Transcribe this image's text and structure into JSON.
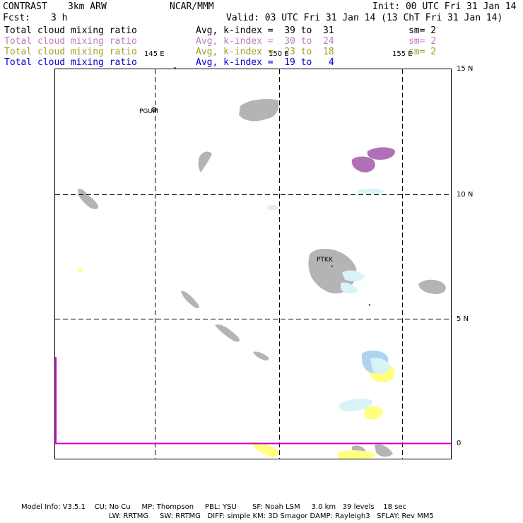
{
  "header": {
    "product": "CONTRAST",
    "model": "3km ARW",
    "center": "NCAR/MMM",
    "init": "Init: 00 UTC Fri 31 Jan 14",
    "fcst_label": "Fcst:",
    "fcst_value": "3 h",
    "valid": "Valid: 03 UTC Fri 31 Jan 14 (13 ChT Fri 31 Jan 14)"
  },
  "legend": [
    {
      "name": "Total cloud mixing ratio",
      "stat": "Avg, k-index =  39 to  31",
      "sm": "sm= 2",
      "color": "#000000"
    },
    {
      "name": "Total cloud mixing ratio",
      "stat": "Avg, k-index =  30 to  24",
      "sm": "sm= 2",
      "color": "#c07cc0"
    },
    {
      "name": "Total cloud mixing ratio",
      "stat": "Avg, k-index =  23 to  18",
      "sm": "sm= 2",
      "color": "#a0a020"
    },
    {
      "name": "Total cloud mixing ratio",
      "stat": "Avg, k-index =  19 to   4",
      "sm": "",
      "color": "#0000cc"
    }
  ],
  "map": {
    "lon_labels": [
      "145 E",
      "150 E",
      "155 E"
    ],
    "lat_labels": [
      "15 N",
      "10 N",
      "5 N",
      "0"
    ],
    "stations": [
      "PGUM",
      "PTKK"
    ],
    "colors": {
      "layer1_gray": "#b4b4b4",
      "layer2_purple": "#b070b8",
      "layer3_yellow": "#ffff80",
      "layer4_lightblue": "#d8f4f8",
      "layer4_blue": "#b0d4f0",
      "equator_line": "#d000d0"
    }
  },
  "footer": {
    "line1": "Model Info: V3.5.1    CU: No Cu     MP: Thompson     PBL: YSU       SF: Noah LSM     3.0 km   39 levels    18 sec",
    "line2": "LW: RRTMG     SW: RRTMG   DIFF: simple KM: 3D Smagor DAMP: Rayleigh3   SFLAY: Rev MM5"
  }
}
